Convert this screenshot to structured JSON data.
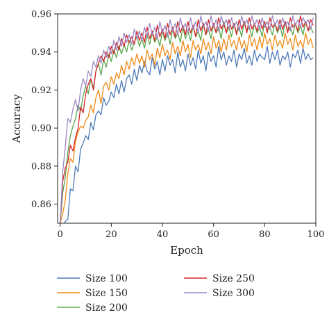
{
  "chart_data": {
    "type": "line",
    "title": "",
    "xlabel": "Epoch",
    "ylabel": "Accuracy",
    "xlim": [
      -1,
      100
    ],
    "ylim": [
      0.85,
      0.96
    ],
    "xticks": [
      0,
      20,
      40,
      60,
      80,
      100
    ],
    "yticks": [
      0.86,
      0.88,
      0.9,
      0.92,
      0.94,
      0.96
    ],
    "ytick_labels": [
      "0.86",
      "0.88",
      "0.90",
      "0.92",
      "0.94",
      "0.96"
    ],
    "xtick_labels": [
      "0",
      "20",
      "40",
      "60",
      "80",
      "100"
    ],
    "grid": false,
    "legend": {
      "placement": "below",
      "columns": 2
    },
    "series": [
      {
        "name": "Size 100",
        "color": "#4e79b8",
        "x_start": 0,
        "values": [
          0.85,
          0.848,
          0.851,
          0.852,
          0.868,
          0.867,
          0.88,
          0.877,
          0.889,
          0.892,
          0.896,
          0.894,
          0.903,
          0.899,
          0.907,
          0.909,
          0.907,
          0.916,
          0.912,
          0.914,
          0.919,
          0.916,
          0.923,
          0.918,
          0.925,
          0.919,
          0.926,
          0.928,
          0.923,
          0.931,
          0.925,
          0.933,
          0.929,
          0.935,
          0.93,
          0.928,
          0.937,
          0.931,
          0.935,
          0.928,
          0.936,
          0.93,
          0.938,
          0.933,
          0.936,
          0.929,
          0.94,
          0.932,
          0.936,
          0.93,
          0.939,
          0.933,
          0.937,
          0.931,
          0.941,
          0.934,
          0.938,
          0.93,
          0.94,
          0.935,
          0.938,
          0.932,
          0.943,
          0.936,
          0.94,
          0.933,
          0.938,
          0.935,
          0.941,
          0.932,
          0.939,
          0.936,
          0.942,
          0.934,
          0.938,
          0.933,
          0.941,
          0.935,
          0.939,
          0.937,
          0.936,
          0.943,
          0.934,
          0.94,
          0.936,
          0.941,
          0.933,
          0.938,
          0.936,
          0.94,
          0.932,
          0.939,
          0.937,
          0.941,
          0.934,
          0.942,
          0.936,
          0.939,
          0.936,
          0.937
        ]
      },
      {
        "name": "Size 150",
        "color": "#ef8a17",
        "x_start": 0,
        "values": [
          0.85,
          0.855,
          0.862,
          0.876,
          0.884,
          0.882,
          0.893,
          0.898,
          0.901,
          0.9,
          0.904,
          0.906,
          0.912,
          0.908,
          0.916,
          0.92,
          0.913,
          0.922,
          0.924,
          0.92,
          0.927,
          0.923,
          0.929,
          0.926,
          0.933,
          0.928,
          0.935,
          0.931,
          0.937,
          0.933,
          0.939,
          0.934,
          0.938,
          0.932,
          0.941,
          0.936,
          0.939,
          0.933,
          0.942,
          0.937,
          0.944,
          0.938,
          0.941,
          0.936,
          0.945,
          0.939,
          0.943,
          0.938,
          0.946,
          0.94,
          0.944,
          0.937,
          0.946,
          0.941,
          0.944,
          0.939,
          0.947,
          0.941,
          0.945,
          0.939,
          0.948,
          0.942,
          0.946,
          0.94,
          0.947,
          0.941,
          0.949,
          0.943,
          0.946,
          0.941,
          0.948,
          0.942,
          0.946,
          0.94,
          0.949,
          0.943,
          0.947,
          0.941,
          0.948,
          0.942,
          0.95,
          0.944,
          0.947,
          0.941,
          0.949,
          0.943,
          0.946,
          0.942,
          0.95,
          0.944,
          0.947,
          0.941,
          0.949,
          0.943,
          0.946,
          0.942,
          0.95,
          0.944,
          0.947,
          0.942
        ]
      },
      {
        "name": "Size 200",
        "color": "#5aa64b",
        "x_start": 0,
        "values": [
          0.85,
          0.866,
          0.874,
          0.887,
          0.896,
          0.901,
          0.905,
          0.912,
          0.909,
          0.917,
          0.922,
          0.918,
          0.926,
          0.921,
          0.93,
          0.934,
          0.928,
          0.936,
          0.932,
          0.939,
          0.935,
          0.941,
          0.937,
          0.943,
          0.939,
          0.944,
          0.94,
          0.946,
          0.941,
          0.945,
          0.948,
          0.943,
          0.947,
          0.942,
          0.949,
          0.944,
          0.95,
          0.945,
          0.948,
          0.943,
          0.951,
          0.946,
          0.95,
          0.944,
          0.952,
          0.947,
          0.95,
          0.945,
          0.953,
          0.947,
          0.951,
          0.946,
          0.954,
          0.948,
          0.951,
          0.946,
          0.955,
          0.949,
          0.952,
          0.947,
          0.955,
          0.95,
          0.953,
          0.947,
          0.956,
          0.95,
          0.953,
          0.948,
          0.955,
          0.95,
          0.953,
          0.948,
          0.956,
          0.951,
          0.953,
          0.948,
          0.955,
          0.95,
          0.953,
          0.948,
          0.956,
          0.951,
          0.953,
          0.949,
          0.955,
          0.95,
          0.954,
          0.948,
          0.956,
          0.951,
          0.953,
          0.949,
          0.955,
          0.95,
          0.954,
          0.949,
          0.956,
          0.951,
          0.953,
          0.95
        ]
      },
      {
        "name": "Size 250",
        "color": "#d62728",
        "x_start": 0,
        "values": [
          0.85,
          0.872,
          0.879,
          0.882,
          0.891,
          0.888,
          0.895,
          0.9,
          0.911,
          0.908,
          0.918,
          0.923,
          0.926,
          0.92,
          0.93,
          0.934,
          0.938,
          0.935,
          0.94,
          0.937,
          0.943,
          0.939,
          0.945,
          0.941,
          0.947,
          0.943,
          0.949,
          0.945,
          0.948,
          0.944,
          0.951,
          0.946,
          0.95,
          0.945,
          0.953,
          0.947,
          0.951,
          0.946,
          0.954,
          0.948,
          0.952,
          0.947,
          0.955,
          0.949,
          0.953,
          0.948,
          0.956,
          0.95,
          0.954,
          0.949,
          0.956,
          0.95,
          0.954,
          0.948,
          0.957,
          0.951,
          0.955,
          0.949,
          0.957,
          0.951,
          0.955,
          0.95,
          0.958,
          0.952,
          0.955,
          0.95,
          0.957,
          0.952,
          0.955,
          0.949,
          0.957,
          0.952,
          0.956,
          0.95,
          0.958,
          0.952,
          0.955,
          0.951,
          0.957,
          0.952,
          0.956,
          0.95,
          0.958,
          0.953,
          0.955,
          0.951,
          0.957,
          0.952,
          0.956,
          0.95,
          0.958,
          0.953,
          0.955,
          0.951,
          0.959,
          0.953,
          0.956,
          0.951,
          0.957,
          0.954
        ]
      },
      {
        "name": "Size 300",
        "color": "#9b87c5",
        "x_start": 0,
        "values": [
          0.85,
          0.877,
          0.89,
          0.905,
          0.903,
          0.91,
          0.915,
          0.909,
          0.92,
          0.926,
          0.922,
          0.93,
          0.927,
          0.935,
          0.932,
          0.938,
          0.934,
          0.941,
          0.937,
          0.943,
          0.939,
          0.946,
          0.941,
          0.948,
          0.943,
          0.95,
          0.945,
          0.949,
          0.944,
          0.952,
          0.947,
          0.951,
          0.946,
          0.953,
          0.948,
          0.955,
          0.949,
          0.953,
          0.947,
          0.956,
          0.95,
          0.954,
          0.948,
          0.957,
          0.951,
          0.955,
          0.949,
          0.958,
          0.952,
          0.955,
          0.95,
          0.958,
          0.952,
          0.956,
          0.95,
          0.959,
          0.953,
          0.956,
          0.951,
          0.959,
          0.953,
          0.957,
          0.951,
          0.959,
          0.954,
          0.957,
          0.952,
          0.958,
          0.953,
          0.956,
          0.951,
          0.959,
          0.954,
          0.957,
          0.952,
          0.959,
          0.954,
          0.957,
          0.952,
          0.958,
          0.953,
          0.956,
          0.952,
          0.959,
          0.954,
          0.957,
          0.952,
          0.958,
          0.954,
          0.956,
          0.951,
          0.959,
          0.954,
          0.957,
          0.953,
          0.958,
          0.955,
          0.957,
          0.952,
          0.958
        ]
      }
    ]
  }
}
